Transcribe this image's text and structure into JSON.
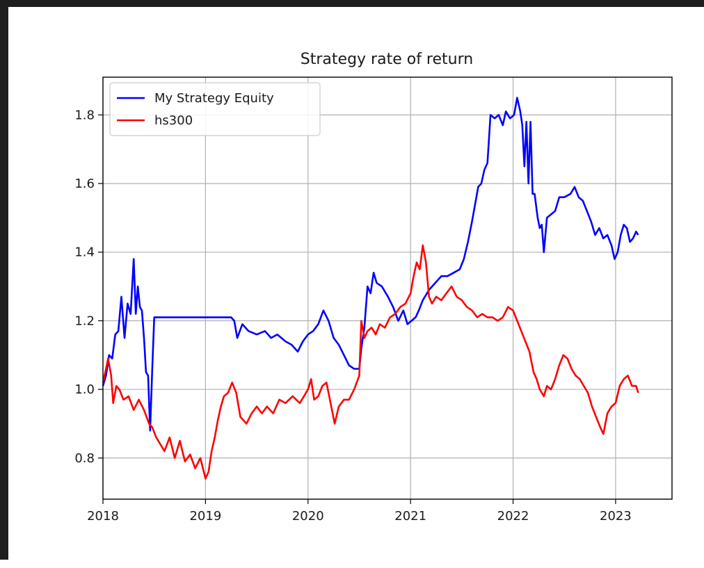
{
  "chart_data": {
    "type": "line",
    "title": "Strategy rate of return",
    "xlabel": "",
    "ylabel": "",
    "xlim": [
      2018.0,
      2023.55
    ],
    "ylim": [
      0.68,
      1.91
    ],
    "x_ticks": [
      2018,
      2019,
      2020,
      2021,
      2022,
      2023
    ],
    "x_tick_labels": [
      "2018",
      "2019",
      "2020",
      "2021",
      "2022",
      "2023"
    ],
    "y_ticks": [
      0.8,
      1.0,
      1.2,
      1.4,
      1.6,
      1.8
    ],
    "y_tick_labels": [
      "0.8",
      "1.0",
      "1.2",
      "1.4",
      "1.6",
      "1.8"
    ],
    "grid": true,
    "legend_position": "top-left",
    "series": [
      {
        "name": "My Strategy Equity",
        "color": "#0000ff",
        "points": [
          [
            2018.0,
            1.01
          ],
          [
            2018.03,
            1.04
          ],
          [
            2018.06,
            1.1
          ],
          [
            2018.09,
            1.09
          ],
          [
            2018.12,
            1.16
          ],
          [
            2018.15,
            1.17
          ],
          [
            2018.18,
            1.27
          ],
          [
            2018.21,
            1.15
          ],
          [
            2018.24,
            1.25
          ],
          [
            2018.27,
            1.22
          ],
          [
            2018.3,
            1.38
          ],
          [
            2018.32,
            1.22
          ],
          [
            2018.34,
            1.3
          ],
          [
            2018.36,
            1.24
          ],
          [
            2018.38,
            1.23
          ],
          [
            2018.4,
            1.15
          ],
          [
            2018.42,
            1.05
          ],
          [
            2018.44,
            1.04
          ],
          [
            2018.46,
            0.88
          ],
          [
            2018.48,
            1.05
          ],
          [
            2018.5,
            1.21
          ],
          [
            2018.6,
            1.21
          ],
          [
            2018.8,
            1.21
          ],
          [
            2019.0,
            1.21
          ],
          [
            2019.2,
            1.21
          ],
          [
            2019.25,
            1.21
          ],
          [
            2019.28,
            1.2
          ],
          [
            2019.31,
            1.15
          ],
          [
            2019.36,
            1.19
          ],
          [
            2019.42,
            1.17
          ],
          [
            2019.5,
            1.16
          ],
          [
            2019.58,
            1.17
          ],
          [
            2019.64,
            1.15
          ],
          [
            2019.7,
            1.16
          ],
          [
            2019.78,
            1.14
          ],
          [
            2019.84,
            1.13
          ],
          [
            2019.9,
            1.11
          ],
          [
            2019.95,
            1.14
          ],
          [
            2020.0,
            1.16
          ],
          [
            2020.05,
            1.17
          ],
          [
            2020.1,
            1.19
          ],
          [
            2020.15,
            1.23
          ],
          [
            2020.2,
            1.2
          ],
          [
            2020.25,
            1.15
          ],
          [
            2020.3,
            1.13
          ],
          [
            2020.35,
            1.1
          ],
          [
            2020.4,
            1.07
          ],
          [
            2020.45,
            1.06
          ],
          [
            2020.5,
            1.06
          ],
          [
            2020.52,
            1.12
          ],
          [
            2020.55,
            1.18
          ],
          [
            2020.58,
            1.3
          ],
          [
            2020.61,
            1.28
          ],
          [
            2020.64,
            1.34
          ],
          [
            2020.67,
            1.31
          ],
          [
            2020.72,
            1.3
          ],
          [
            2020.78,
            1.27
          ],
          [
            2020.83,
            1.24
          ],
          [
            2020.88,
            1.2
          ],
          [
            2020.93,
            1.23
          ],
          [
            2020.97,
            1.19
          ],
          [
            2021.01,
            1.2
          ],
          [
            2021.05,
            1.21
          ],
          [
            2021.08,
            1.23
          ],
          [
            2021.12,
            1.26
          ],
          [
            2021.18,
            1.29
          ],
          [
            2021.24,
            1.31
          ],
          [
            2021.3,
            1.33
          ],
          [
            2021.36,
            1.33
          ],
          [
            2021.42,
            1.34
          ],
          [
            2021.48,
            1.35
          ],
          [
            2021.52,
            1.38
          ],
          [
            2021.56,
            1.43
          ],
          [
            2021.6,
            1.49
          ],
          [
            2021.63,
            1.54
          ],
          [
            2021.66,
            1.59
          ],
          [
            2021.69,
            1.6
          ],
          [
            2021.72,
            1.64
          ],
          [
            2021.75,
            1.66
          ],
          [
            2021.78,
            1.8
          ],
          [
            2021.82,
            1.79
          ],
          [
            2021.86,
            1.8
          ],
          [
            2021.9,
            1.77
          ],
          [
            2021.93,
            1.81
          ],
          [
            2021.97,
            1.79
          ],
          [
            2022.01,
            1.8
          ],
          [
            2022.04,
            1.85
          ],
          [
            2022.07,
            1.81
          ],
          [
            2022.09,
            1.77
          ],
          [
            2022.11,
            1.65
          ],
          [
            2022.13,
            1.78
          ],
          [
            2022.15,
            1.6
          ],
          [
            2022.17,
            1.78
          ],
          [
            2022.19,
            1.57
          ],
          [
            2022.21,
            1.57
          ],
          [
            2022.24,
            1.5
          ],
          [
            2022.26,
            1.47
          ],
          [
            2022.28,
            1.48
          ],
          [
            2022.3,
            1.4
          ],
          [
            2022.33,
            1.5
          ],
          [
            2022.37,
            1.51
          ],
          [
            2022.41,
            1.52
          ],
          [
            2022.45,
            1.56
          ],
          [
            2022.5,
            1.56
          ],
          [
            2022.56,
            1.57
          ],
          [
            2022.6,
            1.59
          ],
          [
            2022.64,
            1.56
          ],
          [
            2022.68,
            1.55
          ],
          [
            2022.72,
            1.52
          ],
          [
            2022.76,
            1.49
          ],
          [
            2022.8,
            1.45
          ],
          [
            2022.84,
            1.47
          ],
          [
            2022.88,
            1.44
          ],
          [
            2022.92,
            1.45
          ],
          [
            2022.96,
            1.42
          ],
          [
            2022.99,
            1.38
          ],
          [
            2023.02,
            1.4
          ],
          [
            2023.05,
            1.45
          ],
          [
            2023.08,
            1.48
          ],
          [
            2023.11,
            1.47
          ],
          [
            2023.14,
            1.43
          ],
          [
            2023.17,
            1.44
          ],
          [
            2023.2,
            1.46
          ],
          [
            2023.22,
            1.45
          ]
        ]
      },
      {
        "name": "hs300",
        "color": "#ff0000",
        "points": [
          [
            2018.0,
            1.02
          ],
          [
            2018.03,
            1.06
          ],
          [
            2018.05,
            1.09
          ],
          [
            2018.08,
            1.04
          ],
          [
            2018.1,
            0.96
          ],
          [
            2018.13,
            1.01
          ],
          [
            2018.16,
            1.0
          ],
          [
            2018.2,
            0.97
          ],
          [
            2018.25,
            0.98
          ],
          [
            2018.3,
            0.94
          ],
          [
            2018.35,
            0.97
          ],
          [
            2018.4,
            0.94
          ],
          [
            2018.45,
            0.9
          ],
          [
            2018.48,
            0.89
          ],
          [
            2018.52,
            0.86
          ],
          [
            2018.56,
            0.84
          ],
          [
            2018.6,
            0.82
          ],
          [
            2018.65,
            0.86
          ],
          [
            2018.7,
            0.8
          ],
          [
            2018.75,
            0.85
          ],
          [
            2018.8,
            0.79
          ],
          [
            2018.85,
            0.81
          ],
          [
            2018.9,
            0.77
          ],
          [
            2018.95,
            0.8
          ],
          [
            2019.0,
            0.74
          ],
          [
            2019.03,
            0.76
          ],
          [
            2019.06,
            0.82
          ],
          [
            2019.09,
            0.86
          ],
          [
            2019.12,
            0.91
          ],
          [
            2019.15,
            0.95
          ],
          [
            2019.18,
            0.98
          ],
          [
            2019.22,
            0.99
          ],
          [
            2019.26,
            1.02
          ],
          [
            2019.3,
            0.99
          ],
          [
            2019.34,
            0.92
          ],
          [
            2019.4,
            0.9
          ],
          [
            2019.45,
            0.93
          ],
          [
            2019.5,
            0.95
          ],
          [
            2019.55,
            0.93
          ],
          [
            2019.6,
            0.95
          ],
          [
            2019.66,
            0.93
          ],
          [
            2019.72,
            0.97
          ],
          [
            2019.78,
            0.96
          ],
          [
            2019.85,
            0.98
          ],
          [
            2019.92,
            0.96
          ],
          [
            2020.0,
            1.0
          ],
          [
            2020.03,
            1.03
          ],
          [
            2020.06,
            0.97
          ],
          [
            2020.1,
            0.98
          ],
          [
            2020.14,
            1.01
          ],
          [
            2020.18,
            1.02
          ],
          [
            2020.22,
            0.96
          ],
          [
            2020.26,
            0.9
          ],
          [
            2020.3,
            0.95
          ],
          [
            2020.35,
            0.97
          ],
          [
            2020.4,
            0.97
          ],
          [
            2020.45,
            1.0
          ],
          [
            2020.5,
            1.04
          ],
          [
            2020.52,
            1.2
          ],
          [
            2020.55,
            1.15
          ],
          [
            2020.58,
            1.17
          ],
          [
            2020.62,
            1.18
          ],
          [
            2020.66,
            1.16
          ],
          [
            2020.7,
            1.19
          ],
          [
            2020.75,
            1.18
          ],
          [
            2020.8,
            1.21
          ],
          [
            2020.85,
            1.22
          ],
          [
            2020.9,
            1.24
          ],
          [
            2020.95,
            1.25
          ],
          [
            2021.0,
            1.28
          ],
          [
            2021.03,
            1.33
          ],
          [
            2021.06,
            1.37
          ],
          [
            2021.09,
            1.35
          ],
          [
            2021.12,
            1.42
          ],
          [
            2021.15,
            1.37
          ],
          [
            2021.18,
            1.27
          ],
          [
            2021.21,
            1.25
          ],
          [
            2021.25,
            1.27
          ],
          [
            2021.3,
            1.26
          ],
          [
            2021.35,
            1.28
          ],
          [
            2021.4,
            1.3
          ],
          [
            2021.45,
            1.27
          ],
          [
            2021.5,
            1.26
          ],
          [
            2021.55,
            1.24
          ],
          [
            2021.6,
            1.23
          ],
          [
            2021.65,
            1.21
          ],
          [
            2021.7,
            1.22
          ],
          [
            2021.75,
            1.21
          ],
          [
            2021.8,
            1.21
          ],
          [
            2021.85,
            1.2
          ],
          [
            2021.9,
            1.21
          ],
          [
            2021.95,
            1.24
          ],
          [
            2022.0,
            1.23
          ],
          [
            2022.04,
            1.2
          ],
          [
            2022.08,
            1.17
          ],
          [
            2022.12,
            1.14
          ],
          [
            2022.16,
            1.11
          ],
          [
            2022.2,
            1.05
          ],
          [
            2022.23,
            1.03
          ],
          [
            2022.26,
            1.0
          ],
          [
            2022.3,
            0.98
          ],
          [
            2022.33,
            1.01
          ],
          [
            2022.37,
            1.0
          ],
          [
            2022.41,
            1.03
          ],
          [
            2022.45,
            1.07
          ],
          [
            2022.49,
            1.1
          ],
          [
            2022.53,
            1.09
          ],
          [
            2022.57,
            1.06
          ],
          [
            2022.61,
            1.04
          ],
          [
            2022.65,
            1.03
          ],
          [
            2022.69,
            1.01
          ],
          [
            2022.73,
            0.99
          ],
          [
            2022.77,
            0.95
          ],
          [
            2022.81,
            0.92
          ],
          [
            2022.85,
            0.89
          ],
          [
            2022.88,
            0.87
          ],
          [
            2022.92,
            0.93
          ],
          [
            2022.96,
            0.95
          ],
          [
            2023.0,
            0.96
          ],
          [
            2023.04,
            1.01
          ],
          [
            2023.08,
            1.03
          ],
          [
            2023.12,
            1.04
          ],
          [
            2023.16,
            1.01
          ],
          [
            2023.2,
            1.01
          ],
          [
            2023.22,
            0.99
          ]
        ]
      }
    ]
  }
}
